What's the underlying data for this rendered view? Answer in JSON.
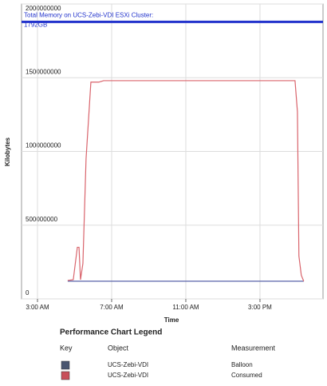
{
  "chart_data": {
    "type": "line",
    "x_label": "Time",
    "y_label": "Kilobytes",
    "x": [
      4.63,
      4.93,
      5.15,
      5.24,
      5.32,
      5.45,
      5.62,
      5.88,
      6.31,
      6.57,
      7.0,
      16.89,
      17.02,
      17.1,
      17.23,
      17.36
    ],
    "series": [
      {
        "name": "Balloon",
        "object": "UCS-Zebi-VDI",
        "color": "#5a64a8",
        "key_color": "#4a5670",
        "values": [
          120000000,
          120000000,
          120000000,
          120000000,
          120000000,
          120000000,
          120000000,
          120000000,
          120000000,
          120000000,
          120000000,
          120000000,
          120000000,
          120000000,
          120000000,
          120000000
        ]
      },
      {
        "name": "Consumed",
        "object": "UCS-Zebi-VDI",
        "color": "#d9646c",
        "key_color": "#c8505a",
        "values": [
          125000000,
          130000000,
          350000000,
          350000000,
          130000000,
          240000000,
          950000000,
          1470000000,
          1470000000,
          1480000000,
          1480000000,
          1480000000,
          1270000000,
          290000000,
          160000000,
          120000000
        ]
      }
    ],
    "xlim": [
      2.14,
      18.4
    ],
    "xticks": [
      {
        "value": 3,
        "label": "3:00 AM"
      },
      {
        "value": 7,
        "label": "7:00 AM"
      },
      {
        "value": 11,
        "label": "11:00 AM"
      },
      {
        "value": 15,
        "label": "3:00 PM"
      }
    ],
    "ylim": [
      0,
      2000000000
    ],
    "yticks": [
      0,
      500000000,
      1000000000,
      1500000000,
      2000000000
    ],
    "grid": true,
    "reference_line": {
      "value": 1879048192,
      "color": "#2233cc",
      "label_lines": [
        "Total Memory on UCS-Zebi-VDI ESXi Cluster:",
        "1792GB"
      ]
    },
    "legend": {
      "title": "Performance Chart Legend",
      "headers": [
        "Key",
        "Object",
        "Measurement"
      ]
    }
  }
}
